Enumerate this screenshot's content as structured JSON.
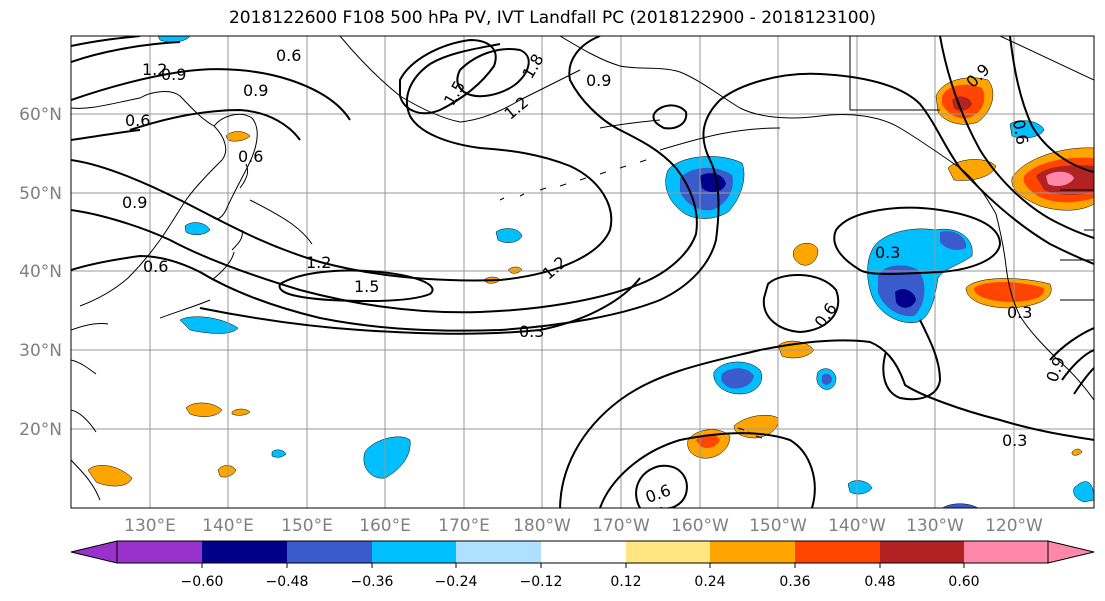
{
  "title": "2018122600 F108 500 hPa PV, IVT Landfall PC (2018122900 - 2018123100)",
  "lat_labels": [
    "20°N",
    "30°N",
    "40°N",
    "50°N",
    "60°N"
  ],
  "lon_labels": [
    "130°E",
    "140°E",
    "150°E",
    "160°E",
    "170°E",
    "180°W",
    "170°W",
    "160°W",
    "150°W",
    "140°W",
    "130°W",
    "120°W"
  ],
  "contour_labels": [
    "1.2",
    "0.9",
    "0.6",
    "0.9",
    "0.6",
    "0.6",
    "0.9",
    "0.6",
    "1.5",
    "1.8",
    "1.2",
    "0.9",
    "1.2",
    "1.5",
    "1.2",
    "0.3",
    "0.3",
    "0.6",
    "0.3",
    "0.6",
    "0.3",
    "0.9",
    "0.9",
    "0.6"
  ],
  "colorbar": {
    "tick_labels": [
      "−0.60",
      "−0.48",
      "−0.36",
      "−0.24",
      "−0.12",
      "0.12",
      "0.24",
      "0.36",
      "0.48",
      "0.60"
    ],
    "colors": [
      "#9932cc",
      "#00008b",
      "#3a5bcc",
      "#00bfff",
      "#b0e0ff",
      "#ffffff",
      "#ffe680",
      "#ffa500",
      "#ff4500",
      "#b22222",
      "#ff88aa"
    ]
  }
}
